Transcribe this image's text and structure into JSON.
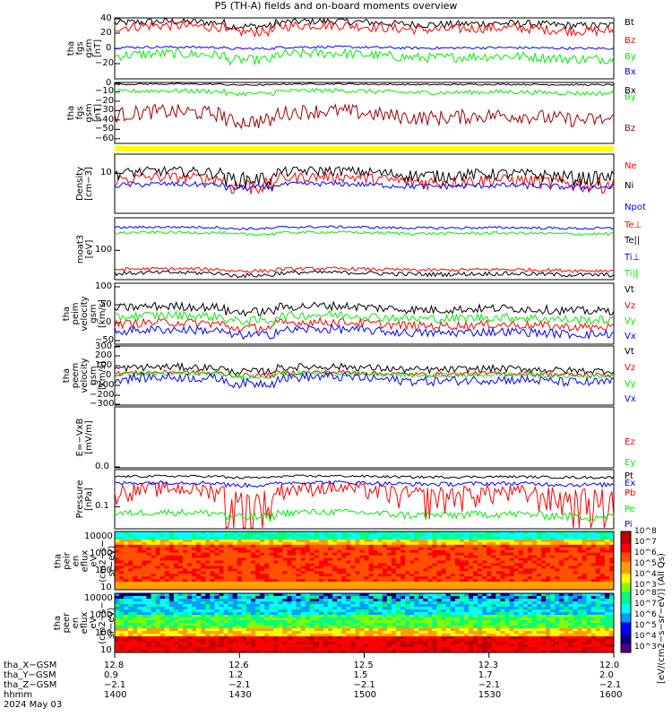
{
  "title": "P5 (TH-A) fields and on-board moments overview",
  "colors": {
    "black": "#000000",
    "red": "#ff0000",
    "green": "#00ee00",
    "blue": "#0000ff",
    "darkred": "#a00000",
    "yellow": "#ffff00"
  },
  "chart_data": [
    {
      "id": "p1",
      "type": "line",
      "ylabel": [
        "tha",
        "fgs",
        "gsm",
        "[nT]"
      ],
      "ylim": [
        -40,
        40
      ],
      "yticks": [
        "40",
        "20",
        "0",
        "−20"
      ],
      "series": [
        {
          "name": "Bt",
          "color": "black",
          "base": 33,
          "amp": 6
        },
        {
          "name": "Bz",
          "color": "red",
          "base": 27,
          "amp": 8
        },
        {
          "name": "By",
          "color": "green",
          "base": -10,
          "amp": 8
        },
        {
          "name": "Bx",
          "color": "blue",
          "base": 1,
          "amp": 2
        }
      ]
    },
    {
      "id": "p2",
      "type": "line",
      "ylabel": [
        "tha",
        "fgs",
        "gsm",
        "[nT]"
      ],
      "ylim": [
        -65,
        0
      ],
      "yticks": [
        "0",
        "−10",
        "−20",
        "−30",
        "−40",
        "−50",
        "−60"
      ],
      "series": [
        {
          "name": "Bx",
          "color": "black",
          "base": -2,
          "amp": 1
        },
        {
          "name": "By",
          "color": "green",
          "base": -10,
          "amp": 3
        },
        {
          "name": "Bz",
          "color": "darkred",
          "base": -35,
          "amp": 10
        }
      ]
    },
    {
      "id": "p3",
      "type": "line",
      "ylabel": [
        "Density",
        "[cm−3]"
      ],
      "yscale": "log",
      "ylim": [
        1,
        30
      ],
      "yticks": [
        "10"
      ],
      "series": [
        {
          "name": "Ne",
          "color": "red",
          "base": 7,
          "amp": 3
        },
        {
          "name": "Ni",
          "color": "black",
          "base": 10,
          "amp": 4
        },
        {
          "name": "Npot",
          "color": "blue",
          "base": 5,
          "amp": 1
        }
      ]
    },
    {
      "id": "p4",
      "type": "line",
      "ylabel": [
        "moat3",
        "[eV]"
      ],
      "yscale": "log",
      "ylim": [
        20,
        600
      ],
      "yticks": [
        "100"
      ],
      "series": [
        {
          "name": "Te⊥",
          "color": "red",
          "base": 35,
          "amp": 4
        },
        {
          "name": "Te||",
          "color": "black",
          "base": 28,
          "amp": 4
        },
        {
          "name": "Ti⊥",
          "color": "blue",
          "base": 350,
          "amp": 30
        },
        {
          "name": "Ti||",
          "color": "green",
          "base": 260,
          "amp": 25
        }
      ]
    },
    {
      "id": "p5",
      "type": "line",
      "ylabel": [
        "tha",
        "peim",
        "velocity",
        "gsm",
        "[km/s]"
      ],
      "ylim": [
        -60,
        110
      ],
      "yticks": [
        "100",
        "50",
        "0",
        "−50"
      ],
      "series": [
        {
          "name": "Vt",
          "color": "black",
          "base": 40,
          "amp": 15
        },
        {
          "name": "Vz",
          "color": "red",
          "base": -5,
          "amp": 15
        },
        {
          "name": "Vy",
          "color": "green",
          "base": 15,
          "amp": 15
        },
        {
          "name": "Vx",
          "color": "blue",
          "base": -25,
          "amp": 15
        }
      ]
    },
    {
      "id": "p6",
      "type": "line",
      "ylabel": [
        "tha",
        "peem",
        "velocity",
        "gsm",
        "[km/s]"
      ],
      "ylim": [
        -300,
        300
      ],
      "yticks": [
        "300",
        "200",
        "100",
        "0",
        "−100",
        "−200",
        "−300"
      ],
      "series": [
        {
          "name": "Vt",
          "color": "black",
          "base": 70,
          "amp": 45
        },
        {
          "name": "Vz",
          "color": "red",
          "base": 20,
          "amp": 30
        },
        {
          "name": "Vy",
          "color": "green",
          "base": 10,
          "amp": 30
        },
        {
          "name": "Vx",
          "color": "blue",
          "base": -40,
          "amp": 60
        }
      ]
    },
    {
      "id": "p7",
      "type": "line",
      "ylabel": [
        "E=−VxB",
        "[mV/m]"
      ],
      "ylim": [
        0,
        1
      ],
      "yticks": [
        "0.0"
      ],
      "series": [
        {
          "name": "Ez",
          "color": "red"
        },
        {
          "name": "Ey",
          "color": "green"
        },
        {
          "name": "Ex",
          "color": "blue"
        }
      ]
    },
    {
      "id": "p8",
      "type": "line",
      "ylabel": [
        "Pressure",
        "[nPa]"
      ],
      "yscale": "log",
      "ylim": [
        0.02,
        1.5
      ],
      "yticks": [
        "0.1"
      ],
      "series": [
        {
          "name": "Pt",
          "color": "black",
          "base": 0.9,
          "amp": 0.1
        },
        {
          "name": "Pb",
          "color": "red",
          "base": 0.3,
          "amp": 0.25
        },
        {
          "name": "Pe",
          "color": "green",
          "base": 0.06,
          "amp": 0.02
        },
        {
          "name": "Pi",
          "color": "blue",
          "base": 0.55,
          "amp": 0.1
        }
      ]
    },
    {
      "id": "p9",
      "type": "heatmap",
      "ylabel": [
        "tha",
        "peir",
        "en",
        "eflux",
        "eV",
        "(cm2−s−",
        "sr−eV)"
      ],
      "yscale": "log",
      "ylim": [
        8,
        20000
      ],
      "yticks": [
        "10000",
        "1000",
        "100",
        "10"
      ]
    },
    {
      "id": "p10",
      "type": "heatmap",
      "ylabel": [
        "tha",
        "peer",
        "en",
        "eflux",
        "eV",
        "(cm2−s−",
        "sr−eV)"
      ],
      "yscale": "log",
      "ylim": [
        8,
        20000
      ],
      "yticks": [
        "10000",
        "1000",
        "100",
        "10"
      ]
    }
  ],
  "colorbar": {
    "title": "[eV/(cm2−s−sr−eV)] (All Qs)",
    "ticks_upper": [
      "10^8",
      "10^7",
      "10^6",
      "10^5",
      "10^4",
      "10^3"
    ],
    "ticks_lower": [
      "10^8",
      "10^7",
      "10^6",
      "10^5",
      "10^4",
      "10^3"
    ]
  },
  "xaxis": {
    "rows": [
      {
        "label": "tha_X−GSM",
        "values": [
          "12.8",
          "12.6",
          "12.5",
          "12.3",
          "12.0"
        ]
      },
      {
        "label": "tha_Y−GSM",
        "values": [
          "0.9",
          "1.2",
          "1.5",
          "1.7",
          "2.0"
        ]
      },
      {
        "label": "tha_Z−GSM",
        "values": [
          "−2.1",
          "−2.1",
          "−2.1",
          "−2.1",
          "−2.1"
        ]
      },
      {
        "label": "hhmm",
        "values": [
          "1400",
          "1430",
          "1500",
          "1530",
          "1600"
        ]
      }
    ],
    "date": "2024 May 03"
  }
}
